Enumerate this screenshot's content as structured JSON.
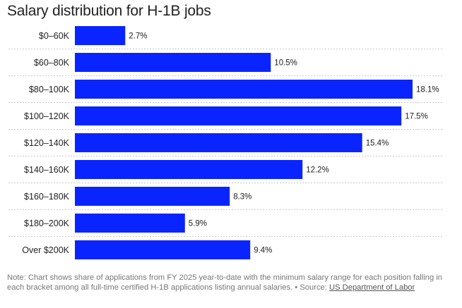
{
  "chart_data": {
    "type": "bar",
    "orientation": "horizontal",
    "title": "Salary distribution for H-1B jobs",
    "categories": [
      "$0–60K",
      "$60–80K",
      "$80–100K",
      "$100–120K",
      "$120–140K",
      "$140–160K",
      "$160–180K",
      "$180–200K",
      "Over $200K"
    ],
    "values": [
      2.7,
      10.5,
      18.1,
      17.5,
      15.4,
      12.2,
      8.3,
      5.9,
      9.4
    ],
    "value_labels": [
      "2.7%",
      "10.5%",
      "18.1%",
      "17.5%",
      "15.4%",
      "12.2%",
      "8.3%",
      "5.9%",
      "9.4%"
    ],
    "unit": "%",
    "xlim": [
      0,
      18.1
    ],
    "grid": false,
    "bar_color": "#0a24ff"
  },
  "note": {
    "text": "Note: Chart shows share of applications from FY 2025 year-to-date with the minimum salary range for each position falling in each bracket among all full-time certified H-1B applications listing annual salaries. • Source: ",
    "source_link": "US Department of Labor"
  }
}
